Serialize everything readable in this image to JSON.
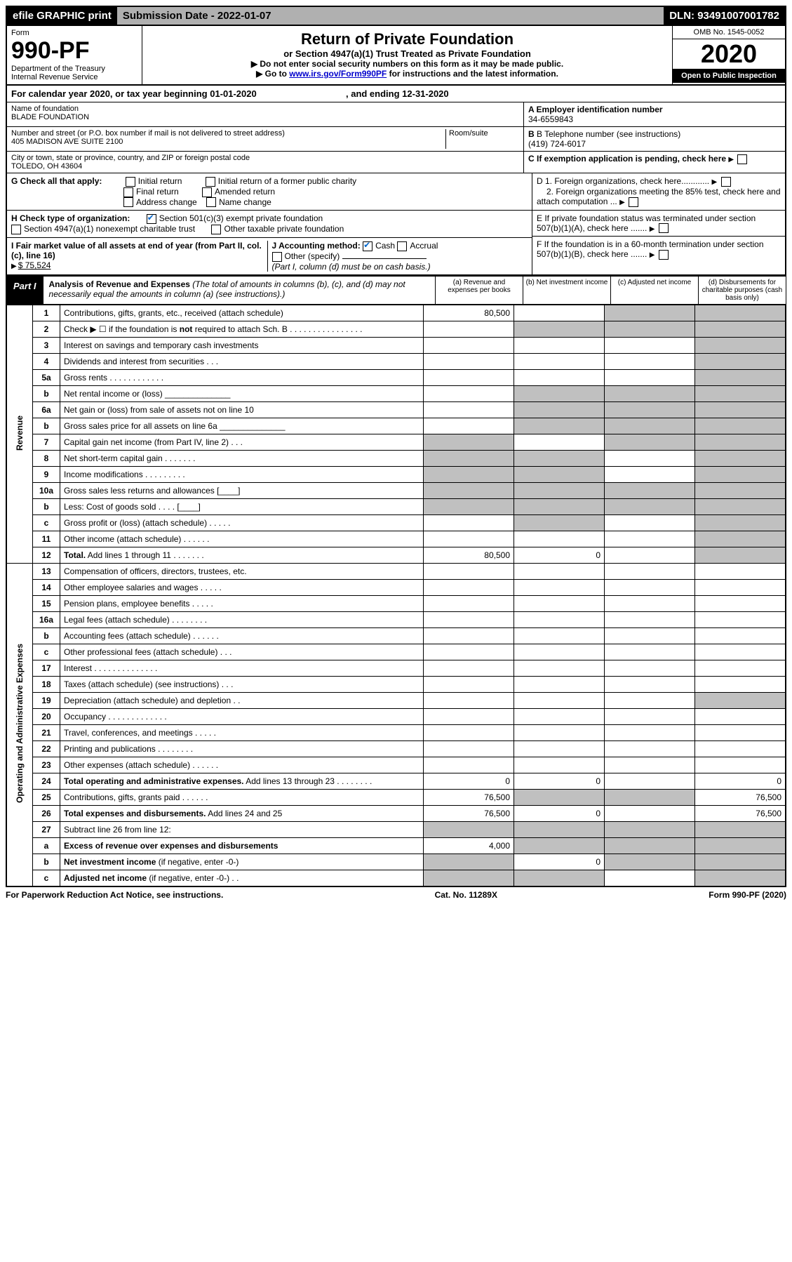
{
  "topbar": {
    "left": "efile GRAPHIC print",
    "mid": "Submission Date - 2022-01-07",
    "right": "DLN: 93491007001782"
  },
  "header": {
    "form": "Form",
    "num": "990-PF",
    "dept": "Department of the Treasury",
    "irs": "Internal Revenue Service",
    "title": "Return of Private Foundation",
    "sub": "or Section 4947(a)(1) Trust Treated as Private Foundation",
    "note1": "▶ Do not enter social security numbers on this form as it may be made public.",
    "note2_pre": "▶ Go to ",
    "note2_link": "www.irs.gov/Form990PF",
    "note2_post": " for instructions and the latest information.",
    "omb": "OMB No. 1545-0052",
    "year": "2020",
    "open": "Open to Public Inspection"
  },
  "caly": {
    "text_pre": "For calendar year 2020, or tax year beginning 01-01-2020",
    "text_post": ", and ending 12-31-2020"
  },
  "info": {
    "name_label": "Name of foundation",
    "name": "BLADE FOUNDATION",
    "addr_label": "Number and street (or P.O. box number if mail is not delivered to street address)",
    "addr": "405 MADISON AVE SUITE 2100",
    "room_label": "Room/suite",
    "city_label": "City or town, state or province, country, and ZIP or foreign postal code",
    "city": "TOLEDO, OH  43604",
    "ein_label": "A Employer identification number",
    "ein": "34-6559843",
    "tel_label": "B Telephone number (see instructions)",
    "tel": "(419) 724-6017",
    "c": "C If exemption application is pending, check here"
  },
  "checks": {
    "g_label": "G Check all that apply:",
    "g_opts": [
      "Initial return",
      "Initial return of a former public charity",
      "Final return",
      "Amended return",
      "Address change",
      "Name change"
    ],
    "h_label": "H Check type of organization:",
    "h1": "Section 501(c)(3) exempt private foundation",
    "h2": "Section 4947(a)(1) nonexempt charitable trust",
    "h3": "Other taxable private foundation",
    "i_label": "I Fair market value of all assets at end of year (from Part II, col. (c), line 16)",
    "i_val": "$  75,524",
    "j_label": "J Accounting method:",
    "j_cash": "Cash",
    "j_accrual": "Accrual",
    "j_other": "Other (specify)",
    "j_note": "(Part I, column (d) must be on cash basis.)",
    "d1": "D 1. Foreign organizations, check here............",
    "d2": "2. Foreign organizations meeting the 85% test, check here and attach computation ...",
    "e": "E  If private foundation status was terminated under section 507(b)(1)(A), check here .......",
    "f": "F  If the foundation is in a 60-month termination under section 507(b)(1)(B), check here .......",
    "arrow": "▶"
  },
  "part1": {
    "label": "Part I",
    "title": "Analysis of Revenue and Expenses",
    "title_note": " (The total of amounts in columns (b), (c), and (d) may not necessarily equal the amounts in column (a) (see instructions).)",
    "col_a": "(a) Revenue and expenses per books",
    "col_b": "(b) Net investment income",
    "col_c": "(c) Adjusted net income",
    "col_d": "(d) Disbursements for charitable purposes (cash basis only)"
  },
  "sections": {
    "revenue": "Revenue",
    "expenses": "Operating and Administrative Expenses"
  },
  "rows": [
    {
      "ln": "1",
      "desc": "Contributions, gifts, grants, etc., received (attach schedule)",
      "a": "80,500",
      "b": "",
      "c": "",
      "d": "",
      "bg": false,
      "cg": true,
      "dg": true
    },
    {
      "ln": "2",
      "desc": "Check ▶ ☐ if the foundation is <b>not</b> required to attach Sch. B  . . . . . . . . . . . . . . . .",
      "a": "",
      "b": "",
      "c": "",
      "d": "",
      "bg": true,
      "cg": true,
      "dg": true
    },
    {
      "ln": "3",
      "desc": "Interest on savings and temporary cash investments",
      "a": "",
      "b": "",
      "c": "",
      "d": "",
      "bg": false,
      "cg": false,
      "dg": true
    },
    {
      "ln": "4",
      "desc": "Dividends and interest from securities  . . .",
      "a": "",
      "b": "",
      "c": "",
      "d": "",
      "bg": false,
      "cg": false,
      "dg": true
    },
    {
      "ln": "5a",
      "desc": "Gross rents  . . . . . . . . . . . .",
      "a": "",
      "b": "",
      "c": "",
      "d": "",
      "bg": false,
      "cg": false,
      "dg": true
    },
    {
      "ln": "b",
      "desc": "Net rental income or (loss)  ______________",
      "a": "",
      "b": "",
      "c": "",
      "d": "",
      "bg": true,
      "cg": true,
      "dg": true
    },
    {
      "ln": "6a",
      "desc": "Net gain or (loss) from sale of assets not on line 10",
      "a": "",
      "b": "",
      "c": "",
      "d": "",
      "bg": true,
      "cg": true,
      "dg": true
    },
    {
      "ln": "b",
      "desc": "Gross sales price for all assets on line 6a ______________",
      "a": "",
      "b": "",
      "c": "",
      "d": "",
      "bg": true,
      "cg": true,
      "dg": true
    },
    {
      "ln": "7",
      "desc": "Capital gain net income (from Part IV, line 2)  . . .",
      "a": "",
      "b": "",
      "c": "",
      "d": "",
      "bg": false,
      "cg": true,
      "dg": true,
      "ag": true
    },
    {
      "ln": "8",
      "desc": "Net short-term capital gain  . . . . . . .",
      "a": "",
      "b": "",
      "c": "",
      "d": "",
      "bg": true,
      "cg": false,
      "dg": true,
      "ag": true
    },
    {
      "ln": "9",
      "desc": "Income modifications  . . . . . . . . .",
      "a": "",
      "b": "",
      "c": "",
      "d": "",
      "bg": true,
      "cg": false,
      "dg": true,
      "ag": true
    },
    {
      "ln": "10a",
      "desc": "Gross sales less returns and allowances  [____]",
      "a": "",
      "b": "",
      "c": "",
      "d": "",
      "bg": true,
      "cg": true,
      "dg": true,
      "ag": true
    },
    {
      "ln": "b",
      "desc": "Less: Cost of goods sold  . . . .  [____]",
      "a": "",
      "b": "",
      "c": "",
      "d": "",
      "bg": true,
      "cg": true,
      "dg": true,
      "ag": true
    },
    {
      "ln": "c",
      "desc": "Gross profit or (loss) (attach schedule)  . . . . .",
      "a": "",
      "b": "",
      "c": "",
      "d": "",
      "bg": true,
      "cg": false,
      "dg": true
    },
    {
      "ln": "11",
      "desc": "Other income (attach schedule)  . . . . . .",
      "a": "",
      "b": "",
      "c": "",
      "d": "",
      "bg": false,
      "cg": false,
      "dg": true
    },
    {
      "ln": "12",
      "desc": "<b>Total.</b> Add lines 1 through 11  . . . . . . .",
      "a": "80,500",
      "b": "0",
      "c": "",
      "d": "",
      "bg": false,
      "cg": false,
      "dg": true
    }
  ],
  "exp_rows": [
    {
      "ln": "13",
      "desc": "Compensation of officers, directors, trustees, etc.",
      "a": "",
      "b": "",
      "c": "",
      "d": ""
    },
    {
      "ln": "14",
      "desc": "Other employee salaries and wages  . . . . .",
      "a": "",
      "b": "",
      "c": "",
      "d": ""
    },
    {
      "ln": "15",
      "desc": "Pension plans, employee benefits  . . . . .",
      "a": "",
      "b": "",
      "c": "",
      "d": ""
    },
    {
      "ln": "16a",
      "desc": "Legal fees (attach schedule)  . . . . . . . .",
      "a": "",
      "b": "",
      "c": "",
      "d": ""
    },
    {
      "ln": "b",
      "desc": "Accounting fees (attach schedule)  . . . . . .",
      "a": "",
      "b": "",
      "c": "",
      "d": ""
    },
    {
      "ln": "c",
      "desc": "Other professional fees (attach schedule)  . . .",
      "a": "",
      "b": "",
      "c": "",
      "d": ""
    },
    {
      "ln": "17",
      "desc": "Interest  . . . . . . . . . . . . . .",
      "a": "",
      "b": "",
      "c": "",
      "d": ""
    },
    {
      "ln": "18",
      "desc": "Taxes (attach schedule) (see instructions)  . . .",
      "a": "",
      "b": "",
      "c": "",
      "d": ""
    },
    {
      "ln": "19",
      "desc": "Depreciation (attach schedule) and depletion  . .",
      "a": "",
      "b": "",
      "c": "",
      "d": "",
      "dg": true
    },
    {
      "ln": "20",
      "desc": "Occupancy  . . . . . . . . . . . . .",
      "a": "",
      "b": "",
      "c": "",
      "d": ""
    },
    {
      "ln": "21",
      "desc": "Travel, conferences, and meetings  . . . . .",
      "a": "",
      "b": "",
      "c": "",
      "d": ""
    },
    {
      "ln": "22",
      "desc": "Printing and publications  . . . . . . . .",
      "a": "",
      "b": "",
      "c": "",
      "d": ""
    },
    {
      "ln": "23",
      "desc": "Other expenses (attach schedule)  . . . . . .",
      "a": "",
      "b": "",
      "c": "",
      "d": ""
    },
    {
      "ln": "24",
      "desc": "<b>Total operating and administrative expenses.</b> Add lines 13 through 23  . . . . . . . .",
      "a": "0",
      "b": "0",
      "c": "",
      "d": "0"
    },
    {
      "ln": "25",
      "desc": "Contributions, gifts, grants paid  . . . . . .",
      "a": "76,500",
      "b": "",
      "c": "",
      "d": "76,500",
      "bg": true,
      "cg": true
    },
    {
      "ln": "26",
      "desc": "<b>Total expenses and disbursements.</b> Add lines 24 and 25",
      "a": "76,500",
      "b": "0",
      "c": "",
      "d": "76,500"
    },
    {
      "ln": "27",
      "desc": "Subtract line 26 from line 12:",
      "a": "",
      "b": "",
      "c": "",
      "d": "",
      "bg": true,
      "cg": true,
      "dg": true,
      "ag": true
    },
    {
      "ln": "a",
      "desc": "<b>Excess of revenue over expenses and disbursements</b>",
      "a": "4,000",
      "b": "",
      "c": "",
      "d": "",
      "bg": true,
      "cg": true,
      "dg": true
    },
    {
      "ln": "b",
      "desc": "<b>Net investment income</b> (if negative, enter -0-)",
      "a": "",
      "b": "0",
      "c": "",
      "d": "",
      "ag": true,
      "cg": true,
      "dg": true
    },
    {
      "ln": "c",
      "desc": "<b>Adjusted net income</b> (if negative, enter -0-)  . .",
      "a": "",
      "b": "",
      "c": "",
      "d": "",
      "ag": true,
      "bg": true,
      "dg": true
    }
  ],
  "footer": {
    "left": "For Paperwork Reduction Act Notice, see instructions.",
    "mid": "Cat. No. 11289X",
    "right": "Form 990-PF (2020)"
  }
}
